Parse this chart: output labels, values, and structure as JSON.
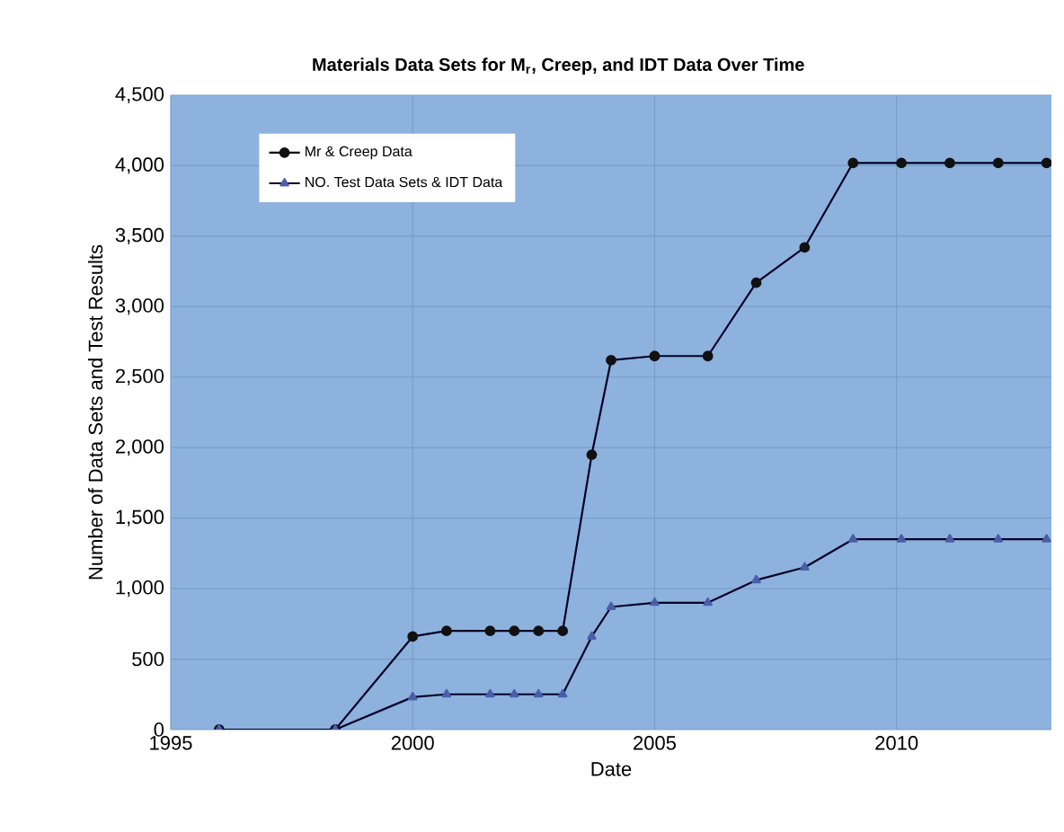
{
  "chart_data": {
    "type": "line",
    "title": "Materials Data Sets for M$_{r}$, Creep, and IDT Data Over Time",
    "xlabel": "Date",
    "ylabel": "Number of Data Sets and Test Results",
    "xlim": [
      1995,
      2013.2
    ],
    "xticks": [
      1995,
      2000,
      2005,
      2010
    ],
    "ylim": [
      0,
      4500
    ],
    "yticks": [
      {
        "value": 0,
        "label": "0"
      },
      {
        "value": 500,
        "label": "500"
      },
      {
        "value": 1000,
        "label": "1,000"
      },
      {
        "value": 1500,
        "label": "1,500"
      },
      {
        "value": 2000,
        "label": "2,000"
      },
      {
        "value": 2500,
        "label": "2,500"
      },
      {
        "value": 3000,
        "label": "3,000"
      },
      {
        "value": 3500,
        "label": "3,500"
      },
      {
        "value": 4000,
        "label": "4,000"
      },
      {
        "value": 4500,
        "label": "4,500"
      }
    ],
    "grid": true,
    "legend": "top left",
    "line_style": "solid",
    "series": [
      {
        "name": "Mr & Creep Data",
        "color": "#111111",
        "marker": "circle",
        "x": [
          1996,
          1998.4,
          2000,
          2000.7,
          2001.6,
          2002.1,
          2002.6,
          2003.1,
          2003.7,
          2004.1,
          2005,
          2006.1,
          2007.1,
          2008.1,
          2009.1,
          2010.1,
          2011.1,
          2012.1,
          2013.1
        ],
        "values": [
          0,
          0,
          660,
          700,
          700,
          700,
          700,
          700,
          1950,
          2620,
          2650,
          2650,
          3170,
          3420,
          4020,
          4020,
          4020,
          4020,
          4020
        ]
      },
      {
        "name": "NO. Test Data Sets & IDT Data",
        "color": "#4a5fa8",
        "marker": "triangle",
        "x": [
          1996,
          1998.4,
          2000,
          2000.7,
          2001.6,
          2002.1,
          2002.6,
          2003.1,
          2003.7,
          2004.1,
          2005,
          2006.1,
          2007.1,
          2008.1,
          2009.1,
          2010.1,
          2011.1,
          2012.1,
          2013.1
        ],
        "values": [
          0,
          0,
          230,
          250,
          250,
          250,
          250,
          250,
          660,
          870,
          900,
          900,
          1060,
          1150,
          1350,
          1350,
          1350,
          1350,
          1350
        ]
      }
    ]
  }
}
